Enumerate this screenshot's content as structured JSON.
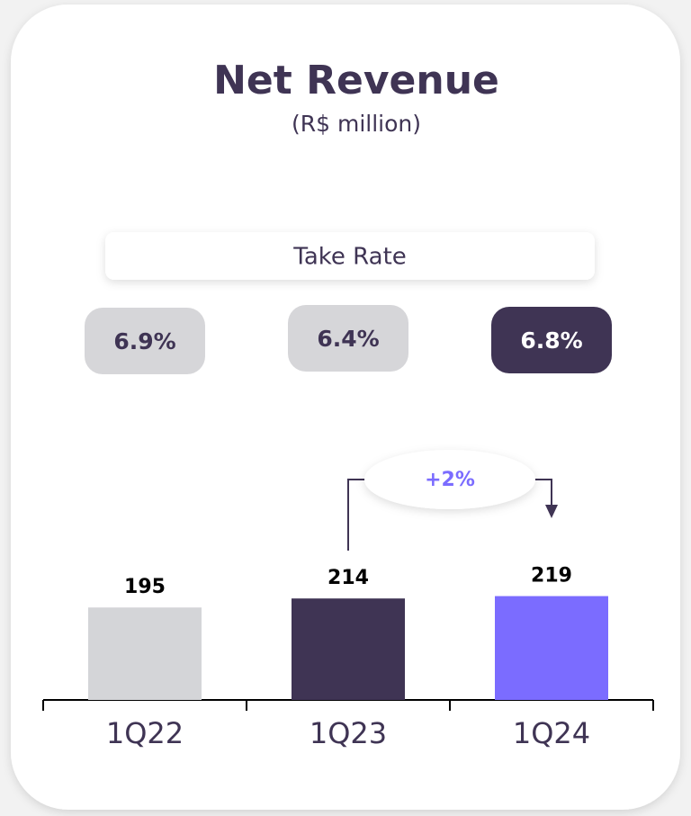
{
  "chart_data": {
    "type": "bar",
    "title": "Net Revenue",
    "subtitle": "(R$ million)",
    "categories": [
      "1Q22",
      "1Q23",
      "1Q24"
    ],
    "values": [
      195,
      214,
      219
    ],
    "colors": [
      "#d4d5d8",
      "#3f3454",
      "#7b6cff"
    ],
    "ylim": [
      0,
      370
    ],
    "take_rate": {
      "label": "Take Rate",
      "values": [
        "6.9%",
        "6.4%",
        "6.8%"
      ]
    },
    "annotation": "+2%"
  }
}
